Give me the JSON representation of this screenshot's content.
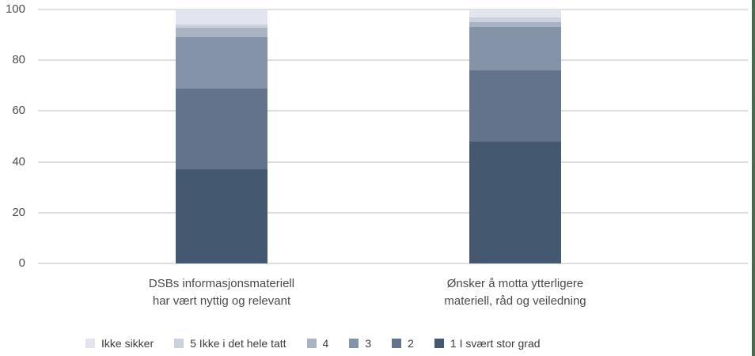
{
  "chart_data": {
    "type": "bar",
    "stacked": true,
    "title": "",
    "xlabel": "",
    "ylabel": "",
    "ylim": [
      0,
      100
    ],
    "y_ticks": [
      0,
      20,
      40,
      60,
      80,
      100
    ],
    "grid": true,
    "legend_position": "bottom",
    "categories": [
      "DSBs informasjonsmateriell\nhar vært nyttig og relevant",
      "Ønsker å motta ytterligere\nmateriell, råd og veiledning"
    ],
    "series": [
      {
        "name": "1 I svært stor grad",
        "values": [
          37,
          48
        ],
        "color": "#44586F"
      },
      {
        "name": "2",
        "values": [
          32,
          28
        ],
        "color": "#62738B"
      },
      {
        "name": "3",
        "values": [
          20,
          17
        ],
        "color": "#8593A9"
      },
      {
        "name": "4",
        "values": [
          4,
          2
        ],
        "color": "#A9B3C3"
      },
      {
        "name": "5 Ikke i det hele tatt",
        "values": [
          1,
          2
        ],
        "color": "#CBD2DE"
      },
      {
        "name": "Ikke sikker",
        "values": [
          6,
          3
        ],
        "color": "#E2E5EE"
      }
    ],
    "legend": [
      "Ikke sikker",
      "5 Ikke i det hele tatt",
      "4",
      "3",
      "2",
      "1 I svært stor grad"
    ]
  },
  "colors": {
    "gridline": "#dedede",
    "tick_label": "#4d4d4d",
    "category_label": "#4a4a4a",
    "legend_label": "#3d3d3d",
    "accent_strip": "#4A6B52"
  }
}
